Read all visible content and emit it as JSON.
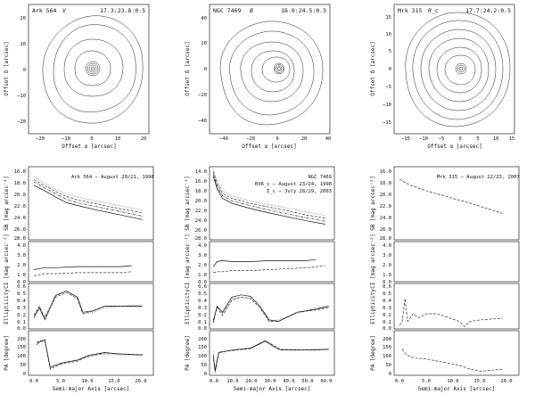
{
  "figure": {
    "columns": [
      {
        "panel_title": "Ark 564",
        "panel_band": "V",
        "panel_levels": "17.3:23.8:0.5",
        "image_xlabel": "Offset α [arcsec]",
        "image_ylabel": "Offset δ [arcsec]",
        "image_xticks": [
          "−20",
          "−10",
          "0",
          "10",
          "20"
        ],
        "image_yticks": [
          "20",
          "10",
          "0",
          "−10",
          "−20"
        ],
        "profile_note": "Ark 564 − August 20/21, 1998",
        "profile_note2": "",
        "profile_note3": "",
        "sb_ticks": [
          "16.0",
          "18.0",
          "20.0",
          "22.0",
          "24.0",
          "26.0",
          "28.0"
        ],
        "ci_ticks": [
          "4.0",
          "3.0",
          "2.0",
          "1.0",
          "0.0"
        ],
        "ell_ticks": [
          "0.6",
          "0.5",
          "0.4",
          "0.3",
          "0.2",
          "0.1",
          "0.0"
        ],
        "pa_ticks": [
          "200",
          "150",
          "100",
          "50",
          "0"
        ],
        "axis_ticks": [
          "0.0",
          "5.0",
          "10.0",
          "15.0",
          "20.0"
        ]
      },
      {
        "panel_title": "NGC 7469",
        "panel_band": "B",
        "panel_levels": "16.0:24.5:0.5",
        "image_xlabel": "Offset α [arcsec]",
        "image_ylabel": "Offset δ [arcsec]",
        "image_xticks": [
          "−40",
          "−20",
          "0",
          "20",
          "40"
        ],
        "image_yticks": [
          "40",
          "20",
          "0",
          "−20",
          "−40"
        ],
        "profile_note": "NGC 7469",
        "profile_note2": "BVR_c − August 23/24, 1998",
        "profile_note3": "I_c − July 28/29, 2003",
        "sb_ticks": [
          "14.0",
          "16.0",
          "18.0",
          "20.0",
          "22.0",
          "24.0",
          "26.0",
          "28.0"
        ],
        "ci_ticks": [
          "4.0",
          "3.0",
          "2.0",
          "1.0",
          "0.0"
        ],
        "ell_ticks": [
          "0.6",
          "0.5",
          "0.4",
          "0.3",
          "0.2",
          "0.1",
          "0.0"
        ],
        "pa_ticks": [
          "200",
          "150",
          "100",
          "50",
          "0"
        ],
        "axis_ticks": [
          "0.0",
          "10.0",
          "20.0",
          "30.0",
          "40.0",
          "50.0",
          "60.0"
        ]
      },
      {
        "panel_title": "Mrk 315",
        "panel_band": "R_c",
        "panel_levels": "17.7:24.2:0.5",
        "image_xlabel": "Offset α [arcsec]",
        "image_ylabel": "Offset δ [arcsec]",
        "image_xticks": [
          "−15",
          "−10",
          "−5",
          "0",
          "5",
          "10",
          "15"
        ],
        "image_yticks": [
          "15",
          "10",
          "5",
          "0",
          "−5",
          "−10",
          "−15"
        ],
        "profile_note": "Mrk 315 − August 22/23, 2007",
        "profile_note2": "",
        "profile_note3": "",
        "sb_ticks": [
          "16.0",
          "18.0",
          "20.0",
          "22.0",
          "24.0",
          "26.0",
          "28.0"
        ],
        "ci_ticks": [
          "4.0",
          "3.0",
          "2.0",
          "1.0",
          "0.0"
        ],
        "ell_ticks": [
          "0.6",
          "0.5",
          "0.4",
          "0.3",
          "0.2",
          "0.1",
          "0.0"
        ],
        "pa_ticks": [
          "200",
          "150",
          "100",
          "50",
          "0"
        ],
        "axis_ticks": [
          "0.0",
          "5.0",
          "10.0",
          "15.0",
          "20.0"
        ]
      }
    ],
    "profile_ylabels": {
      "sb": "SB [mag arcsec⁻²]",
      "ci": "CI [mag arcsec⁻²]",
      "ell": "Ellipticity",
      "pa": "PA [degree]"
    },
    "profile_xlabel": "Semi-major Axis [arcsec]"
  },
  "chart_data": [
    {
      "type": "line",
      "title": "Ark 564 − August 20/21, 1998 (surface brightness)",
      "xlabel": "Semi-major Axis [arcsec]",
      "ylabel": "SB [mag arcsec⁻²]",
      "xlim": [
        -1,
        22
      ],
      "ylim": [
        28.5,
        15.5
      ],
      "series": [
        {
          "name": "B",
          "style": "dot",
          "x": [
            0,
            2,
            4,
            6,
            8,
            12,
            16,
            20
          ],
          "values": [
            17.3,
            18.5,
            19.5,
            20.3,
            20.9,
            21.7,
            22.5,
            23.2
          ]
        },
        {
          "name": "V",
          "style": "dash",
          "x": [
            0,
            2,
            4,
            6,
            8,
            12,
            16,
            20
          ],
          "values": [
            17.8,
            18.9,
            19.9,
            20.8,
            21.4,
            22.2,
            23.0,
            23.7
          ]
        },
        {
          "name": "R_c",
          "style": "dashdot",
          "x": [
            0,
            2,
            4,
            6,
            8,
            12,
            16,
            20
          ],
          "values": [
            18.2,
            19.3,
            20.3,
            21.3,
            21.9,
            22.7,
            23.5,
            24.3
          ]
        },
        {
          "name": "I_c",
          "style": "solid",
          "x": [
            0,
            2,
            4,
            6,
            8,
            12,
            16,
            20
          ],
          "values": [
            18.8,
            19.8,
            20.9,
            21.9,
            22.4,
            23.3,
            24.1,
            24.9
          ]
        }
      ]
    },
    {
      "type": "line",
      "title": "Ark 564 (colour index)",
      "xlabel": "Semi-major Axis [arcsec]",
      "ylabel": "CI [mag arcsec⁻²]",
      "xlim": [
        -1,
        22
      ],
      "ylim": [
        0,
        4
      ],
      "series": [
        {
          "name": "B−I",
          "style": "solid",
          "x": [
            0,
            2,
            4,
            8,
            12,
            16,
            18
          ],
          "values": [
            1.2,
            1.4,
            1.4,
            1.5,
            1.5,
            1.5,
            1.6
          ]
        },
        {
          "name": "V−R",
          "style": "dash",
          "x": [
            0,
            2,
            4,
            8,
            12,
            16,
            18
          ],
          "values": [
            0.6,
            0.8,
            0.8,
            0.9,
            0.9,
            0.9,
            1.0
          ]
        }
      ]
    },
    {
      "type": "line",
      "title": "Ark 564 (ellipticity)",
      "xlabel": "Semi-major Axis [arcsec]",
      "ylabel": "Ellipticity",
      "xlim": [
        -1,
        22
      ],
      "ylim": [
        0,
        0.6
      ],
      "series": [
        {
          "name": "B",
          "style": "dot",
          "x": [
            0,
            1,
            2,
            4,
            6,
            8,
            9,
            11,
            13,
            16,
            20
          ],
          "values": [
            0.2,
            0.25,
            0.18,
            0.45,
            0.5,
            0.4,
            0.2,
            0.22,
            0.28,
            0.3,
            0.32
          ]
        },
        {
          "name": "V",
          "style": "dash",
          "x": [
            0,
            1,
            2,
            4,
            6,
            8,
            9,
            11,
            13,
            16,
            20
          ],
          "values": [
            0.18,
            0.3,
            0.15,
            0.42,
            0.48,
            0.4,
            0.2,
            0.24,
            0.3,
            0.3,
            0.3
          ]
        },
        {
          "name": "I_c",
          "style": "solid",
          "x": [
            0,
            1,
            2,
            4,
            6,
            8,
            9,
            11,
            13,
            16,
            20
          ],
          "values": [
            0.15,
            0.28,
            0.12,
            0.44,
            0.5,
            0.42,
            0.22,
            0.24,
            0.3,
            0.3,
            0.3
          ]
        }
      ]
    },
    {
      "type": "line",
      "title": "Ark 564 (position angle)",
      "xlabel": "Semi-major Axis [arcsec]",
      "ylabel": "PA [degree]",
      "xlim": [
        -1,
        22
      ],
      "ylim": [
        0,
        220
      ],
      "series": [
        {
          "name": "B",
          "style": "dot",
          "x": [
            0.5,
            1,
            2,
            3,
            5,
            8,
            10,
            13,
            16,
            20
          ],
          "values": [
            165,
            170,
            180,
            35,
            60,
            75,
            95,
            105,
            100,
            100
          ]
        },
        {
          "name": "V",
          "style": "dash",
          "x": [
            0.5,
            1,
            2,
            3,
            5,
            8,
            10,
            13,
            16,
            20
          ],
          "values": [
            160,
            168,
            175,
            30,
            55,
            70,
            92,
            110,
            105,
            102
          ]
        },
        {
          "name": "I_c",
          "style": "solid",
          "x": [
            0.5,
            1,
            2,
            3,
            5,
            8,
            10,
            13,
            16,
            20
          ],
          "values": [
            150,
            165,
            172,
            40,
            60,
            75,
            98,
            112,
            105,
            100
          ]
        }
      ]
    },
    {
      "type": "line",
      "title": "NGC 7469 (surface brightness)",
      "xlabel": "Semi-major Axis [arcsec]",
      "ylabel": "SB [mag arcsec⁻²]",
      "xlim": [
        -2,
        65
      ],
      "ylim": [
        28.5,
        13.5
      ],
      "series": [
        {
          "name": "B",
          "style": "dot",
          "x": [
            0,
            2,
            5,
            10,
            20,
            30,
            40,
            50,
            60
          ],
          "values": [
            14.0,
            16.5,
            18.5,
            19.5,
            20.5,
            21.3,
            22.0,
            22.8,
            23.5
          ]
        },
        {
          "name": "V",
          "style": "dash",
          "x": [
            0,
            2,
            5,
            10,
            20,
            30,
            40,
            50,
            60
          ],
          "values": [
            14.5,
            17.0,
            19.0,
            20.0,
            21.0,
            21.8,
            22.6,
            23.4,
            24.1
          ]
        },
        {
          "name": "R_c",
          "style": "dashdot",
          "x": [
            0,
            2,
            5,
            10,
            20,
            30,
            40,
            50,
            60
          ],
          "values": [
            15.0,
            17.5,
            19.5,
            20.5,
            21.5,
            22.4,
            23.2,
            24.0,
            24.7
          ]
        },
        {
          "name": "I_c",
          "style": "solid",
          "x": [
            0,
            2,
            5,
            10,
            20,
            30,
            40,
            50,
            60
          ],
          "values": [
            15.5,
            18.0,
            20.0,
            21.0,
            22.1,
            23.0,
            23.8,
            24.6,
            25.3
          ]
        }
      ]
    },
    {
      "type": "line",
      "title": "NGC 7469 (colour index)",
      "xlabel": "Semi-major Axis [arcsec]",
      "ylabel": "CI [mag arcsec⁻²]",
      "xlim": [
        -2,
        65
      ],
      "ylim": [
        0,
        4
      ],
      "series": [
        {
          "name": "B−I",
          "style": "solid",
          "x": [
            0,
            2,
            5,
            10,
            20,
            30,
            40,
            50,
            55
          ],
          "values": [
            1.5,
            2.0,
            2.1,
            2.0,
            2.0,
            2.1,
            2.1,
            2.1,
            2.2
          ]
        },
        {
          "name": "V−R",
          "style": "dash",
          "x": [
            0,
            2,
            5,
            10,
            20,
            30,
            40,
            50,
            60
          ],
          "values": [
            0.9,
            1.0,
            1.0,
            1.1,
            1.1,
            1.2,
            1.3,
            1.4,
            1.6
          ]
        }
      ]
    },
    {
      "type": "line",
      "title": "NGC 7469 (ellipticity)",
      "xlabel": "Semi-major Axis [arcsec]",
      "ylabel": "Ellipticity",
      "xlim": [
        -2,
        65
      ],
      "ylim": [
        0,
        0.6
      ],
      "series": [
        {
          "name": "B",
          "style": "dot",
          "x": [
            0,
            2,
            5,
            10,
            15,
            20,
            25,
            30,
            35,
            45,
            55,
            62
          ],
          "values": [
            0.1,
            0.3,
            0.2,
            0.4,
            0.42,
            0.42,
            0.3,
            0.1,
            0.12,
            0.2,
            0.28,
            0.3
          ]
        },
        {
          "name": "V",
          "style": "dash",
          "x": [
            0,
            2,
            5,
            10,
            15,
            20,
            25,
            30,
            35,
            45,
            55,
            62
          ],
          "values": [
            0.12,
            0.28,
            0.18,
            0.38,
            0.42,
            0.4,
            0.28,
            0.1,
            0.1,
            0.22,
            0.25,
            0.28
          ]
        },
        {
          "name": "I_c",
          "style": "solid",
          "x": [
            0,
            2,
            5,
            10,
            15,
            20,
            25,
            30,
            35,
            45,
            55,
            62
          ],
          "values": [
            0.08,
            0.3,
            0.22,
            0.42,
            0.45,
            0.43,
            0.3,
            0.12,
            0.1,
            0.22,
            0.26,
            0.3
          ]
        }
      ]
    },
    {
      "type": "line",
      "title": "NGC 7469 (position angle)",
      "xlabel": "Semi-major Axis [arcsec]",
      "ylabel": "PA [degree]",
      "xlim": [
        -2,
        65
      ],
      "ylim": [
        0,
        220
      ],
      "series": [
        {
          "name": "B",
          "style": "dot",
          "x": [
            0,
            1,
            3,
            10,
            20,
            25,
            28,
            32,
            36,
            45,
            55,
            62
          ],
          "values": [
            120,
            10,
            110,
            125,
            135,
            160,
            175,
            140,
            125,
            125,
            128,
            130
          ]
        },
        {
          "name": "V",
          "style": "dash",
          "x": [
            0,
            1,
            3,
            10,
            20,
            25,
            28,
            32,
            36,
            45,
            55,
            62
          ],
          "values": [
            100,
            30,
            115,
            122,
            132,
            158,
            170,
            150,
            128,
            126,
            125,
            128
          ]
        },
        {
          "name": "I_c",
          "style": "solid",
          "x": [
            0,
            1,
            3,
            10,
            20,
            25,
            28,
            32,
            36,
            45,
            55,
            62
          ],
          "values": [
            90,
            20,
            112,
            124,
            134,
            155,
            168,
            145,
            126,
            124,
            126,
            128
          ]
        }
      ]
    },
    {
      "type": "line",
      "title": "Mrk 315 − August 22/23, 2007 (surface brightness)",
      "xlabel": "Semi-major Axis [arcsec]",
      "ylabel": "SB [mag arcsec⁻²]",
      "xlim": [
        -1,
        22
      ],
      "ylim": [
        28.5,
        15.5
      ],
      "series": [
        {
          "name": "R_c",
          "style": "dash",
          "x": [
            0,
            1,
            2,
            4,
            6,
            8,
            10,
            12,
            14,
            16,
            18,
            19
          ],
          "values": [
            17.7,
            18.3,
            18.8,
            19.5,
            20.1,
            20.6,
            21.2,
            21.7,
            22.3,
            22.9,
            23.5,
            23.8
          ]
        }
      ]
    },
    {
      "type": "line",
      "title": "Mrk 315 (ellipticity)",
      "xlabel": "Semi-major Axis [arcsec]",
      "ylabel": "Ellipticity",
      "xlim": [
        -1,
        22
      ],
      "ylim": [
        0,
        0.6
      ],
      "series": [
        {
          "name": "R_c",
          "style": "dash",
          "x": [
            0,
            0.5,
            1,
            1.5,
            2.5,
            3.5,
            5,
            7,
            9,
            11,
            12,
            13,
            15,
            17,
            19
          ],
          "values": [
            0.05,
            0.1,
            0.4,
            0.1,
            0.2,
            0.15,
            0.2,
            0.2,
            0.15,
            0.1,
            0.03,
            0.1,
            0.12,
            0.13,
            0.14
          ]
        }
      ]
    },
    {
      "type": "line",
      "title": "Mrk 315 (position angle)",
      "xlabel": "Semi-major Axis [arcsec]",
      "ylabel": "PA [degree]",
      "xlim": [
        -1,
        22
      ],
      "ylim": [
        0,
        220
      ],
      "series": [
        {
          "name": "R_c",
          "style": "dash",
          "x": [
            0.5,
            1,
            2,
            3,
            5,
            7,
            9,
            11,
            13,
            15,
            17,
            19
          ],
          "values": [
            130,
            110,
            90,
            85,
            80,
            70,
            60,
            50,
            30,
            20,
            25,
            30
          ]
        }
      ]
    }
  ]
}
